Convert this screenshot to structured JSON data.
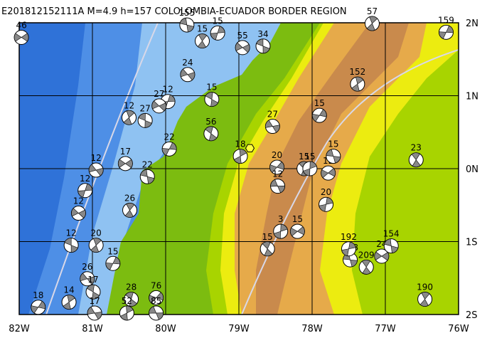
{
  "title": "E201812152111A M=4.9 h=157 COLOLOMBIA-ECUADOR BORDER REGION",
  "map": {
    "lon_range": [
      -82,
      -76
    ],
    "lat_range": [
      -2,
      2
    ],
    "lon_ticks": [
      {
        "value": -82,
        "label": "82W"
      },
      {
        "value": -81,
        "label": "81W"
      },
      {
        "value": -80,
        "label": "80W"
      },
      {
        "value": -79,
        "label": "79W"
      },
      {
        "value": -78,
        "label": "78W"
      },
      {
        "value": -77,
        "label": "77W"
      },
      {
        "value": -76,
        "label": "76W"
      }
    ],
    "lat_ticks": [
      {
        "value": 2,
        "label": "2N"
      },
      {
        "value": 1,
        "label": "1N"
      },
      {
        "value": 0,
        "label": "0N"
      },
      {
        "value": -1,
        "label": "1S"
      },
      {
        "value": -2,
        "label": "2S"
      }
    ],
    "epicenter": {
      "lon": -78.85,
      "lat": 0.28
    },
    "events": [
      {
        "label": "46",
        "lon": -81.97,
        "lat": 1.8
      },
      {
        "label": "155",
        "lon": -79.71,
        "lat": 1.97
      },
      {
        "label": "15",
        "lon": -79.5,
        "lat": 1.75
      },
      {
        "label": "15",
        "lon": -79.29,
        "lat": 1.86
      },
      {
        "label": "55",
        "lon": -78.95,
        "lat": 1.66
      },
      {
        "label": "34",
        "lon": -78.67,
        "lat": 1.68
      },
      {
        "label": "57",
        "lon": -77.18,
        "lat": 1.99
      },
      {
        "label": "159",
        "lon": -76.17,
        "lat": 1.87
      },
      {
        "label": "24",
        "lon": -79.7,
        "lat": 1.29
      },
      {
        "label": "15",
        "lon": -79.37,
        "lat": 0.95
      },
      {
        "label": "152",
        "lon": -77.38,
        "lat": 1.16
      },
      {
        "label": "15",
        "lon": -77.9,
        "lat": 0.73
      },
      {
        "label": "27",
        "lon": -78.54,
        "lat": 0.58
      },
      {
        "label": "56",
        "lon": -79.38,
        "lat": 0.48
      },
      {
        "label": "18",
        "lon": -78.98,
        "lat": 0.17
      },
      {
        "label": "20",
        "lon": -78.48,
        "lat": 0.02
      },
      {
        "label": "12",
        "lon": -78.47,
        "lat": -0.24
      },
      {
        "label": "15",
        "lon": -78.11,
        "lat": 0.0
      },
      {
        "label": "15",
        "lon": -78.03,
        "lat": 0.0
      },
      {
        "label": "12",
        "lon": -77.78,
        "lat": -0.06
      },
      {
        "label": "15",
        "lon": -77.71,
        "lat": 0.17
      },
      {
        "label": "23",
        "lon": -76.58,
        "lat": 0.12
      },
      {
        "label": "20",
        "lon": -77.81,
        "lat": -0.49
      },
      {
        "label": "17",
        "lon": -80.55,
        "lat": 0.07
      },
      {
        "label": "22",
        "lon": -80.25,
        "lat": -0.11
      },
      {
        "label": "26",
        "lon": -80.49,
        "lat": -0.57
      },
      {
        "label": "12",
        "lon": -81.1,
        "lat": -0.3
      },
      {
        "label": "12",
        "lon": -81.19,
        "lat": -0.61
      },
      {
        "label": "12",
        "lon": -81.29,
        "lat": -1.05
      },
      {
        "label": "20",
        "lon": -80.95,
        "lat": -1.05
      },
      {
        "label": "15",
        "lon": -80.72,
        "lat": -1.3
      },
      {
        "label": "26",
        "lon": -81.07,
        "lat": -1.51
      },
      {
        "label": "17",
        "lon": -80.99,
        "lat": -1.69
      },
      {
        "label": "14",
        "lon": -81.32,
        "lat": -1.83
      },
      {
        "label": "18",
        "lon": -81.74,
        "lat": -1.9
      },
      {
        "label": "17",
        "lon": -80.97,
        "lat": -1.98
      },
      {
        "label": "28",
        "lon": -80.47,
        "lat": -1.79
      },
      {
        "label": "52",
        "lon": -80.53,
        "lat": -1.98
      },
      {
        "label": "76",
        "lon": -80.13,
        "lat": -1.77
      },
      {
        "label": "85",
        "lon": -80.13,
        "lat": -1.98
      },
      {
        "label": "15",
        "lon": -78.61,
        "lat": -1.1
      },
      {
        "label": "3",
        "lon": -78.43,
        "lat": -0.86
      },
      {
        "label": "15",
        "lon": -78.2,
        "lat": -0.86
      },
      {
        "label": "198",
        "lon": -77.48,
        "lat": -1.25
      },
      {
        "label": "209",
        "lon": -77.26,
        "lat": -1.35
      },
      {
        "label": "192",
        "lon": -77.5,
        "lat": -1.1
      },
      {
        "label": "24",
        "lon": -77.05,
        "lat": -1.2
      },
      {
        "label": "154",
        "lon": -76.92,
        "lat": -1.06
      },
      {
        "label": "190",
        "lon": -76.46,
        "lat": -1.79
      },
      {
        "label": "12",
        "lon": -79.97,
        "lat": 0.92
      },
      {
        "label": "27",
        "lon": -80.09,
        "lat": 0.86
      },
      {
        "label": "27",
        "lon": -80.28,
        "lat": 0.66
      },
      {
        "label": "12",
        "lon": -80.5,
        "lat": 0.7
      },
      {
        "label": "22",
        "lon": -79.95,
        "lat": 0.27
      },
      {
        "label": "12",
        "lon": -80.95,
        "lat": -0.02
      }
    ]
  }
}
